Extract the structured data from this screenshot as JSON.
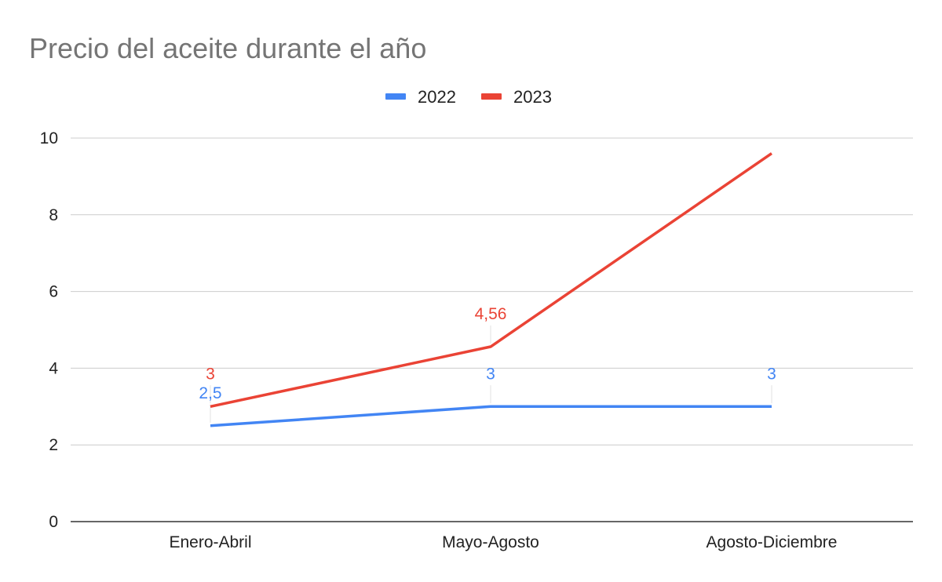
{
  "chart_data": {
    "type": "line",
    "title": "Precio del aceite durante el año",
    "xlabel": "",
    "ylabel": "",
    "categories": [
      "Enero-Abril",
      "Mayo-Agosto",
      "Agosto-Diciembre"
    ],
    "ylim": [
      0,
      10
    ],
    "yticks": [
      "0",
      "2",
      "4",
      "6",
      "8",
      "10"
    ],
    "grid": true,
    "legend": "top-center",
    "series": [
      {
        "name": "2022",
        "color": "#4285f4",
        "values": [
          2.5,
          3,
          3
        ],
        "labels": [
          "2,5",
          "3",
          "3"
        ]
      },
      {
        "name": "2023",
        "color": "#ea4335",
        "values": [
          3,
          4.56,
          9.6
        ],
        "labels": [
          "3",
          "4,56",
          ""
        ]
      }
    ]
  }
}
